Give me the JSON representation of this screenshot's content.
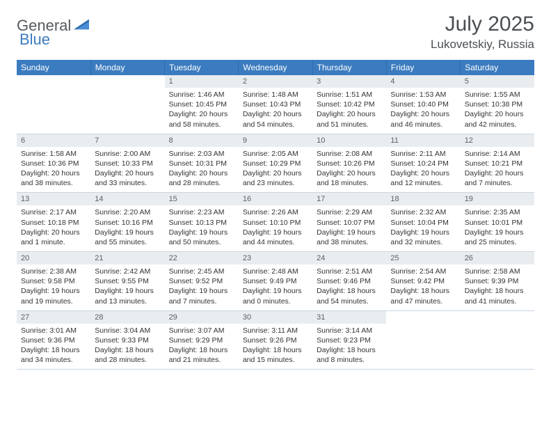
{
  "logo": {
    "word1": "General",
    "word2": "Blue"
  },
  "header": {
    "month_year": "July 2025",
    "location": "Lukovetskiy, Russia"
  },
  "colors": {
    "header_bg": "#3b7bbf",
    "header_text": "#ffffff",
    "daynum_bg": "#e9edf0",
    "text": "#333333",
    "border": "#c9d4df",
    "logo_gray": "#555b60",
    "logo_blue": "#3b7bbf"
  },
  "weekdays": [
    "Sunday",
    "Monday",
    "Tuesday",
    "Wednesday",
    "Thursday",
    "Friday",
    "Saturday"
  ],
  "weeks": [
    [
      null,
      null,
      {
        "n": 1,
        "sr": "Sunrise: 1:46 AM",
        "ss": "Sunset: 10:45 PM",
        "dl1": "Daylight: 20 hours",
        "dl2": "and 58 minutes."
      },
      {
        "n": 2,
        "sr": "Sunrise: 1:48 AM",
        "ss": "Sunset: 10:43 PM",
        "dl1": "Daylight: 20 hours",
        "dl2": "and 54 minutes."
      },
      {
        "n": 3,
        "sr": "Sunrise: 1:51 AM",
        "ss": "Sunset: 10:42 PM",
        "dl1": "Daylight: 20 hours",
        "dl2": "and 51 minutes."
      },
      {
        "n": 4,
        "sr": "Sunrise: 1:53 AM",
        "ss": "Sunset: 10:40 PM",
        "dl1": "Daylight: 20 hours",
        "dl2": "and 46 minutes."
      },
      {
        "n": 5,
        "sr": "Sunrise: 1:55 AM",
        "ss": "Sunset: 10:38 PM",
        "dl1": "Daylight: 20 hours",
        "dl2": "and 42 minutes."
      }
    ],
    [
      {
        "n": 6,
        "sr": "Sunrise: 1:58 AM",
        "ss": "Sunset: 10:36 PM",
        "dl1": "Daylight: 20 hours",
        "dl2": "and 38 minutes."
      },
      {
        "n": 7,
        "sr": "Sunrise: 2:00 AM",
        "ss": "Sunset: 10:33 PM",
        "dl1": "Daylight: 20 hours",
        "dl2": "and 33 minutes."
      },
      {
        "n": 8,
        "sr": "Sunrise: 2:03 AM",
        "ss": "Sunset: 10:31 PM",
        "dl1": "Daylight: 20 hours",
        "dl2": "and 28 minutes."
      },
      {
        "n": 9,
        "sr": "Sunrise: 2:05 AM",
        "ss": "Sunset: 10:29 PM",
        "dl1": "Daylight: 20 hours",
        "dl2": "and 23 minutes."
      },
      {
        "n": 10,
        "sr": "Sunrise: 2:08 AM",
        "ss": "Sunset: 10:26 PM",
        "dl1": "Daylight: 20 hours",
        "dl2": "and 18 minutes."
      },
      {
        "n": 11,
        "sr": "Sunrise: 2:11 AM",
        "ss": "Sunset: 10:24 PM",
        "dl1": "Daylight: 20 hours",
        "dl2": "and 12 minutes."
      },
      {
        "n": 12,
        "sr": "Sunrise: 2:14 AM",
        "ss": "Sunset: 10:21 PM",
        "dl1": "Daylight: 20 hours",
        "dl2": "and 7 minutes."
      }
    ],
    [
      {
        "n": 13,
        "sr": "Sunrise: 2:17 AM",
        "ss": "Sunset: 10:18 PM",
        "dl1": "Daylight: 20 hours",
        "dl2": "and 1 minute."
      },
      {
        "n": 14,
        "sr": "Sunrise: 2:20 AM",
        "ss": "Sunset: 10:16 PM",
        "dl1": "Daylight: 19 hours",
        "dl2": "and 55 minutes."
      },
      {
        "n": 15,
        "sr": "Sunrise: 2:23 AM",
        "ss": "Sunset: 10:13 PM",
        "dl1": "Daylight: 19 hours",
        "dl2": "and 50 minutes."
      },
      {
        "n": 16,
        "sr": "Sunrise: 2:26 AM",
        "ss": "Sunset: 10:10 PM",
        "dl1": "Daylight: 19 hours",
        "dl2": "and 44 minutes."
      },
      {
        "n": 17,
        "sr": "Sunrise: 2:29 AM",
        "ss": "Sunset: 10:07 PM",
        "dl1": "Daylight: 19 hours",
        "dl2": "and 38 minutes."
      },
      {
        "n": 18,
        "sr": "Sunrise: 2:32 AM",
        "ss": "Sunset: 10:04 PM",
        "dl1": "Daylight: 19 hours",
        "dl2": "and 32 minutes."
      },
      {
        "n": 19,
        "sr": "Sunrise: 2:35 AM",
        "ss": "Sunset: 10:01 PM",
        "dl1": "Daylight: 19 hours",
        "dl2": "and 25 minutes."
      }
    ],
    [
      {
        "n": 20,
        "sr": "Sunrise: 2:38 AM",
        "ss": "Sunset: 9:58 PM",
        "dl1": "Daylight: 19 hours",
        "dl2": "and 19 minutes."
      },
      {
        "n": 21,
        "sr": "Sunrise: 2:42 AM",
        "ss": "Sunset: 9:55 PM",
        "dl1": "Daylight: 19 hours",
        "dl2": "and 13 minutes."
      },
      {
        "n": 22,
        "sr": "Sunrise: 2:45 AM",
        "ss": "Sunset: 9:52 PM",
        "dl1": "Daylight: 19 hours",
        "dl2": "and 7 minutes."
      },
      {
        "n": 23,
        "sr": "Sunrise: 2:48 AM",
        "ss": "Sunset: 9:49 PM",
        "dl1": "Daylight: 19 hours",
        "dl2": "and 0 minutes."
      },
      {
        "n": 24,
        "sr": "Sunrise: 2:51 AM",
        "ss": "Sunset: 9:46 PM",
        "dl1": "Daylight: 18 hours",
        "dl2": "and 54 minutes."
      },
      {
        "n": 25,
        "sr": "Sunrise: 2:54 AM",
        "ss": "Sunset: 9:42 PM",
        "dl1": "Daylight: 18 hours",
        "dl2": "and 47 minutes."
      },
      {
        "n": 26,
        "sr": "Sunrise: 2:58 AM",
        "ss": "Sunset: 9:39 PM",
        "dl1": "Daylight: 18 hours",
        "dl2": "and 41 minutes."
      }
    ],
    [
      {
        "n": 27,
        "sr": "Sunrise: 3:01 AM",
        "ss": "Sunset: 9:36 PM",
        "dl1": "Daylight: 18 hours",
        "dl2": "and 34 minutes."
      },
      {
        "n": 28,
        "sr": "Sunrise: 3:04 AM",
        "ss": "Sunset: 9:33 PM",
        "dl1": "Daylight: 18 hours",
        "dl2": "and 28 minutes."
      },
      {
        "n": 29,
        "sr": "Sunrise: 3:07 AM",
        "ss": "Sunset: 9:29 PM",
        "dl1": "Daylight: 18 hours",
        "dl2": "and 21 minutes."
      },
      {
        "n": 30,
        "sr": "Sunrise: 3:11 AM",
        "ss": "Sunset: 9:26 PM",
        "dl1": "Daylight: 18 hours",
        "dl2": "and 15 minutes."
      },
      {
        "n": 31,
        "sr": "Sunrise: 3:14 AM",
        "ss": "Sunset: 9:23 PM",
        "dl1": "Daylight: 18 hours",
        "dl2": "and 8 minutes."
      },
      null,
      null
    ]
  ]
}
